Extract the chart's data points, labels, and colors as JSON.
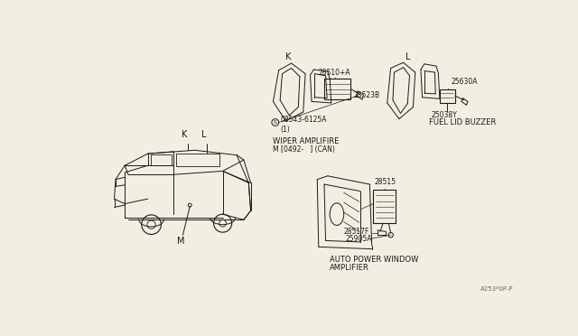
{
  "bg_color": "#f2efe2",
  "line_color": "#1a1a1a",
  "diagram_code": "A253*0P-P",
  "labels": {
    "K_car": "K",
    "L_car": "L",
    "M_car": "M",
    "K_detail": "K",
    "L_detail": "L",
    "part_28510A": "28510+A",
    "part_28523B": "28523B",
    "part_08543": "08543-6125A",
    "part_08543_sub": "(1)",
    "wiper_label": "WIPER AMPLIFIRE",
    "wiper_sub": "M [0492-   ] (CAN)",
    "part_25630A": "25630A",
    "part_25038Y": "25038Y",
    "fuel_buzzer": "FUEL LID BUZZER",
    "part_28515": "28515",
    "part_28517F": "28517F",
    "part_25905A": "25905A",
    "auto_power": "AUTO POWER WINDOW",
    "amplifier": "AMPLIFIER"
  },
  "font_size_label": 6.0,
  "font_size_part": 5.5,
  "font_size_section": 7.0,
  "font_size_code": 5.0
}
